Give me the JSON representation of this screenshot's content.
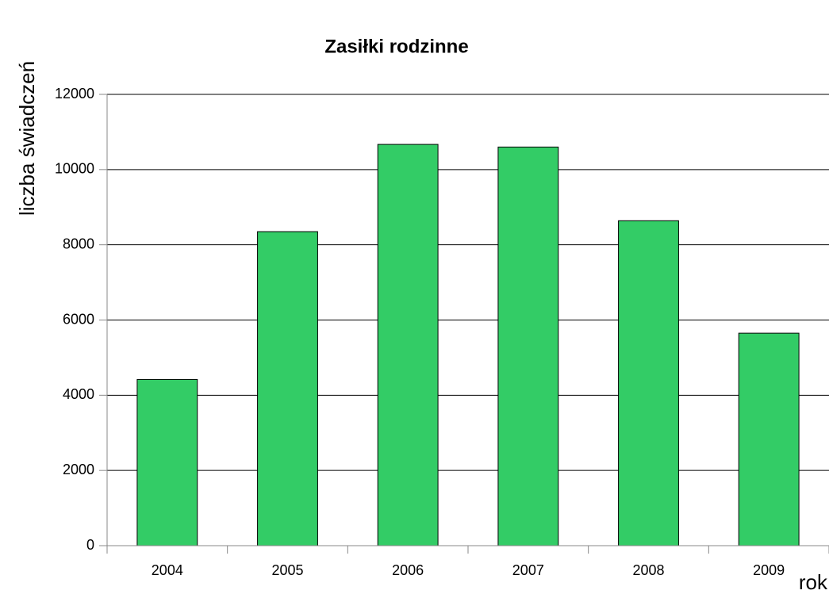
{
  "chart_data": {
    "type": "bar",
    "title": "Zasiłki rodzinne",
    "y_label": "liczba świadczeń",
    "x_label": "rok",
    "categories": [
      "2004",
      "2005",
      "2006",
      "2007",
      "2008",
      "2009"
    ],
    "values": [
      4420,
      8350,
      10670,
      10600,
      8640,
      5650
    ],
    "color": "#33cc66",
    "ylim": [
      0,
      12000
    ],
    "yticks": [
      0,
      2000,
      4000,
      6000,
      8000,
      10000,
      12000
    ],
    "grid": true
  }
}
